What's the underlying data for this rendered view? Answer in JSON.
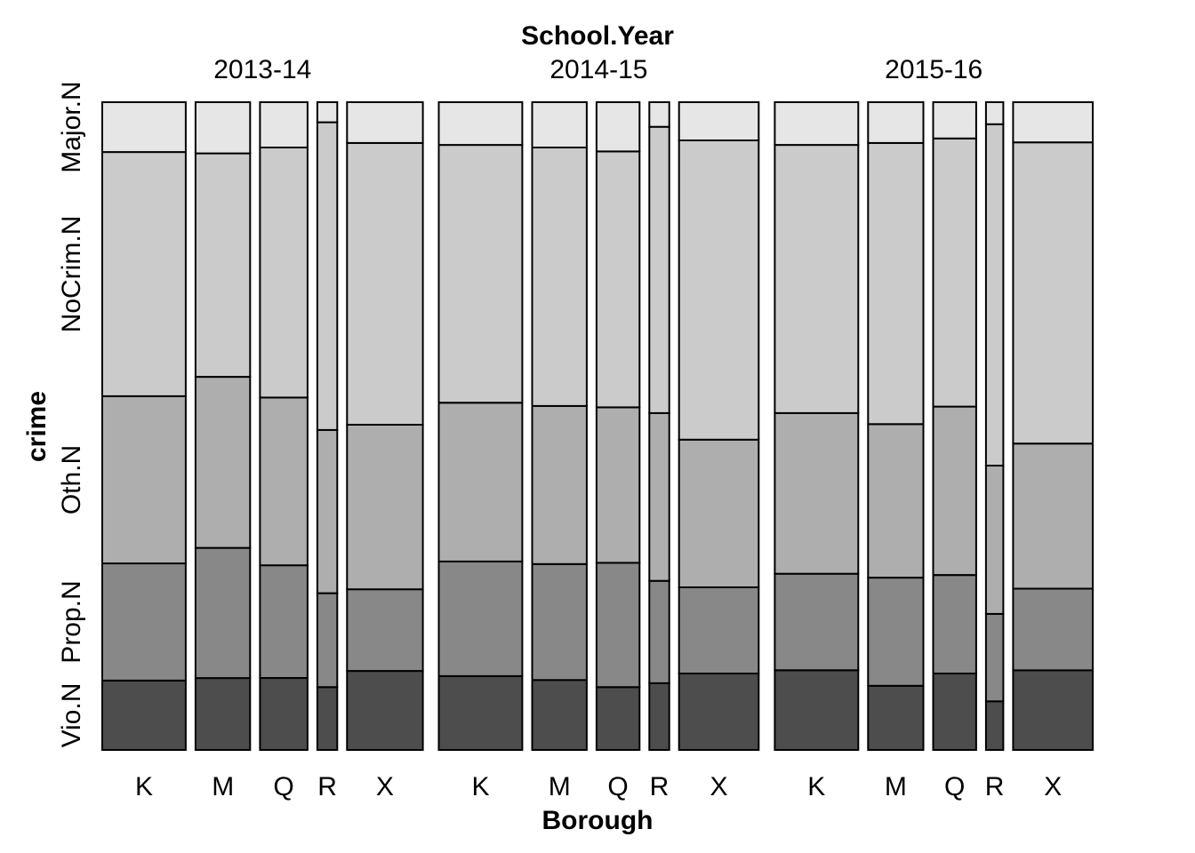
{
  "chart_data": {
    "type": "mosaic",
    "title": "",
    "facet_label": "School.Year",
    "xlabel": "Borough",
    "ylabel": "crime",
    "facets": [
      "2013-14",
      "2014-15",
      "2015-16"
    ],
    "categories": [
      "K",
      "M",
      "Q",
      "R",
      "X"
    ],
    "crime_levels": [
      "Vio.N",
      "Prop.N",
      "Oth.N",
      "NoCrim.N",
      "Major.N"
    ],
    "level_colors": [
      "#4d4d4d",
      "#888888",
      "#aeaeae",
      "#cbcbcb",
      "#e6e6e6"
    ],
    "column_widths": [
      [
        0.13,
        0.085,
        0.074,
        0.031,
        0.118
      ],
      [
        0.13,
        0.085,
        0.067,
        0.031,
        0.124
      ],
      [
        0.13,
        0.086,
        0.067,
        0.027,
        0.124
      ]
    ],
    "proportions": [
      [
        [
          0.107,
          0.181,
          0.258,
          0.377,
          0.077
        ],
        [
          0.111,
          0.201,
          0.264,
          0.345,
          0.079
        ],
        [
          0.111,
          0.174,
          0.259,
          0.386,
          0.07
        ],
        [
          0.097,
          0.145,
          0.252,
          0.475,
          0.031
        ],
        [
          0.122,
          0.126,
          0.254,
          0.435,
          0.063
        ]
      ],
      [
        [
          0.114,
          0.177,
          0.245,
          0.398,
          0.066
        ],
        [
          0.108,
          0.179,
          0.244,
          0.399,
          0.07
        ],
        [
          0.097,
          0.192,
          0.24,
          0.395,
          0.076
        ],
        [
          0.103,
          0.158,
          0.259,
          0.442,
          0.038
        ],
        [
          0.118,
          0.133,
          0.228,
          0.462,
          0.059
        ]
      ],
      [
        [
          0.123,
          0.149,
          0.248,
          0.414,
          0.066
        ],
        [
          0.099,
          0.167,
          0.237,
          0.434,
          0.063
        ],
        [
          0.118,
          0.152,
          0.26,
          0.414,
          0.056
        ],
        [
          0.075,
          0.135,
          0.229,
          0.527,
          0.034
        ],
        [
          0.123,
          0.126,
          0.224,
          0.465,
          0.062
        ]
      ]
    ],
    "grid": false,
    "legend": "none"
  }
}
